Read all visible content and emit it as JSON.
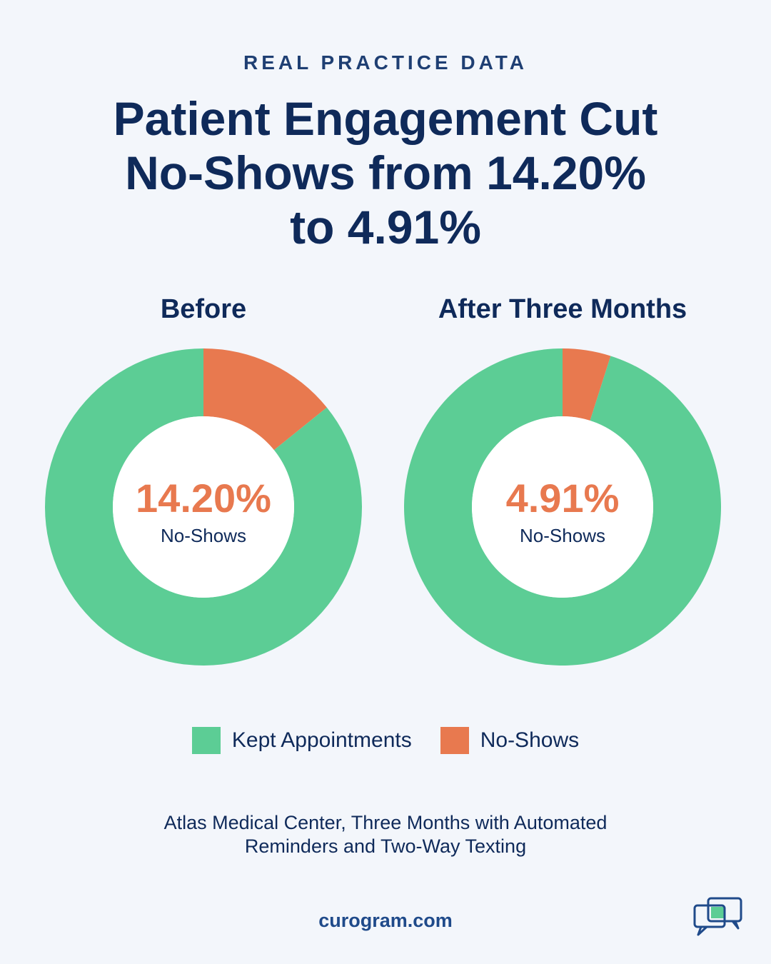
{
  "header": {
    "eyebrow": "REAL PRACTICE DATA",
    "headline_lines": [
      "Patient Engagement Cut",
      "No-Shows from 14.20%",
      "to 4.91%"
    ]
  },
  "colors": {
    "kept": "#5ccd95",
    "no_show": "#e8794f",
    "hole": "#ffffff"
  },
  "chart_data": [
    {
      "type": "pie",
      "title": "Before",
      "categories": [
        "Kept Appointments",
        "No-Shows"
      ],
      "values": [
        85.8,
        14.2
      ],
      "center_value": "14.20%",
      "center_label": "No-Shows"
    },
    {
      "type": "pie",
      "title": "After Three Months",
      "categories": [
        "Kept Appointments",
        "No-Shows"
      ],
      "values": [
        95.09,
        4.91
      ],
      "center_value": "4.91%",
      "center_label": "No-Shows"
    }
  ],
  "legend": {
    "placement": "bottom-center",
    "items": [
      {
        "label": "Kept Appointments",
        "color": "#5ccd95"
      },
      {
        "label": "No-Shows",
        "color": "#e8794f"
      }
    ]
  },
  "caption_lines": [
    "Atlas Medical Center, Three Months with Automated",
    "Reminders and Two-Way Texting"
  ],
  "footer": {
    "url": "curogram.com",
    "logo_icon": "chat-bubbles-icon"
  }
}
